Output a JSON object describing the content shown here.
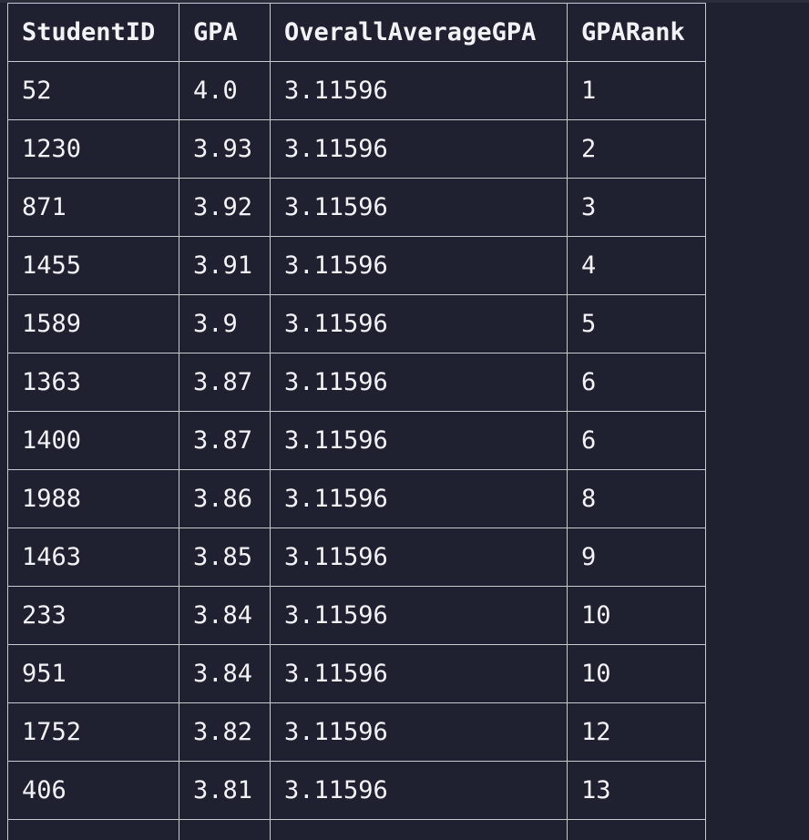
{
  "result_table": {
    "columns": [
      "StudentID",
      "GPA",
      "OverallAverageGPA",
      "GPARank"
    ],
    "rows": [
      [
        "52",
        "4.0",
        "3.11596",
        "1"
      ],
      [
        "1230",
        "3.93",
        "3.11596",
        "2"
      ],
      [
        "871",
        "3.92",
        "3.11596",
        "3"
      ],
      [
        "1455",
        "3.91",
        "3.11596",
        "4"
      ],
      [
        "1589",
        "3.9",
        "3.11596",
        "5"
      ],
      [
        "1363",
        "3.87",
        "3.11596",
        "6"
      ],
      [
        "1400",
        "3.87",
        "3.11596",
        "6"
      ],
      [
        "1988",
        "3.86",
        "3.11596",
        "8"
      ],
      [
        "1463",
        "3.85",
        "3.11596",
        "9"
      ],
      [
        "233",
        "3.84",
        "3.11596",
        "10"
      ],
      [
        "951",
        "3.84",
        "3.11596",
        "10"
      ],
      [
        "1752",
        "3.82",
        "3.11596",
        "12"
      ],
      [
        "406",
        "3.81",
        "3.11596",
        "13"
      ],
      [
        "",
        "",
        "",
        ""
      ]
    ]
  },
  "colors": {
    "background": "#1f2130",
    "text": "#f2f3f7",
    "grid": "#c7c9d1"
  }
}
